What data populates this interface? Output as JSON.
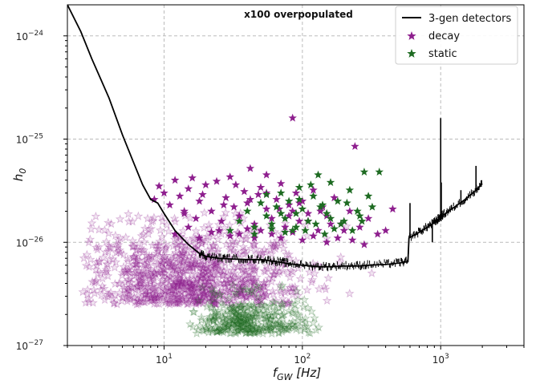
{
  "chart_data": {
    "type": "scatter",
    "title": "x100 overpopulated",
    "xlabel": "f_GW [Hz]",
    "ylabel": "h_0",
    "x_scale": "log",
    "y_scale": "log",
    "xlim": [
      2,
      4000
    ],
    "ylim": [
      1e-27,
      2e-24
    ],
    "x_ticks": [
      {
        "value": 10,
        "base": "10",
        "exp": "1"
      },
      {
        "value": 100,
        "base": "10",
        "exp": "2"
      },
      {
        "value": 1000,
        "base": "10",
        "exp": "3"
      }
    ],
    "y_ticks": [
      {
        "value": 1e-27,
        "base": "10",
        "exp": "−27"
      },
      {
        "value": 1e-26,
        "base": "10",
        "exp": "−26"
      },
      {
        "value": 1e-25,
        "base": "10",
        "exp": "−25"
      },
      {
        "value": 1e-24,
        "base": "10",
        "exp": "−24"
      }
    ],
    "grid": true,
    "legend": {
      "placement": "top-right",
      "entries": [
        {
          "label": "3-gen detectors",
          "marker": "line",
          "color": "#000000"
        },
        {
          "label": "decay",
          "marker": "star",
          "color": "#8e1f8e"
        },
        {
          "label": "static",
          "marker": "star",
          "color": "#1e6b22"
        }
      ]
    },
    "series": [
      {
        "name": "3-gen detectors",
        "kind": "line",
        "color": "#000000",
        "x": [
          2,
          2.5,
          3,
          4,
          5,
          6,
          7,
          8,
          9,
          10,
          12,
          15,
          18,
          20,
          25,
          30,
          40,
          50,
          60,
          70,
          80,
          100,
          130,
          160,
          200,
          250,
          300,
          400,
          500,
          580,
          590,
          700,
          800,
          900,
          950,
          1000,
          1050,
          1200,
          1500,
          1800,
          2000
        ],
        "y": [
          2e-24,
          1.1e-24,
          6e-25,
          2.5e-25,
          1.1e-25,
          6e-26,
          3.6e-26,
          2.6e-26,
          2.4e-26,
          1.9e-26,
          1.3e-26,
          9.5e-27,
          7.8e-27,
          7.3e-27,
          7e-27,
          6.9e-27,
          6.8e-27,
          6.8e-27,
          6.6e-27,
          6.4e-27,
          6.2e-27,
          6e-27,
          5.8e-27,
          5.8e-27,
          5.9e-27,
          5.9e-27,
          6e-27,
          6.1e-27,
          6.3e-27,
          6.5e-27,
          1.1e-26,
          1.25e-26,
          1.4e-26,
          1.55e-26,
          1.65e-26,
          1.75e-26,
          1.85e-26,
          2.1e-26,
          2.6e-26,
          3.2e-26,
          3.7e-26
        ]
      },
      {
        "name": "decay",
        "kind": "scatter",
        "marker": "star",
        "color": "#8e1f8e",
        "x": [
          8.5,
          9.2,
          10,
          11,
          12,
          13,
          14,
          15,
          16,
          17,
          18,
          20,
          22,
          24,
          26,
          28,
          30,
          32,
          35,
          38,
          40,
          42,
          45,
          48,
          50,
          55,
          60,
          65,
          70,
          75,
          80,
          85,
          90,
          95,
          100,
          110,
          120,
          130,
          140,
          150,
          170,
          190,
          220,
          260,
          300,
          350,
          400,
          450,
          12,
          15,
          18,
          22,
          25,
          30,
          35,
          40,
          45,
          50,
          60,
          70,
          85,
          100,
          120,
          150,
          180,
          230,
          280,
          14,
          19,
          27,
          33,
          42,
          55,
          68,
          80,
          95,
          110,
          135,
          160,
          200,
          85,
          55,
          240
        ],
        "y": [
          2.6e-26,
          3.5e-26,
          3e-26,
          2.3e-26,
          4e-26,
          2.8e-26,
          1.9e-26,
          3.3e-26,
          4.2e-26,
          1.7e-26,
          2.5e-26,
          3.6e-26,
          2e-26,
          3.9e-26,
          1.6e-26,
          2.7e-26,
          4.3e-26,
          2.2e-26,
          1.8e-26,
          3.1e-26,
          2.4e-26,
          5.2e-26,
          1.5e-26,
          2.9e-26,
          3.4e-26,
          2.1e-26,
          1.7e-26,
          2.6e-26,
          3.7e-26,
          1.4e-26,
          2.3e-26,
          2e-26,
          3e-26,
          1.6e-26,
          2.5e-26,
          1.9e-26,
          3.2e-26,
          1.3e-26,
          2.2e-26,
          1.8e-26,
          2.7e-26,
          1.5e-26,
          2e-26,
          1.4e-26,
          1.7e-26,
          1.2e-26,
          1.3e-26,
          2.1e-26,
          1.2e-26,
          1.4e-26,
          1.1e-26,
          1.25e-26,
          1.3e-26,
          1.15e-26,
          1.2e-26,
          1.35e-26,
          1.1e-26,
          1.3e-26,
          1.2e-26,
          1.1e-26,
          1.25e-26,
          1.05e-26,
          1.15e-26,
          1e-26,
          1.1e-26,
          1.05e-26,
          9.5e-27,
          2e-26,
          2.9e-26,
          2.3e-26,
          3.6e-26,
          2.6e-26,
          3e-26,
          2.1e-26,
          1.8e-26,
          2.4e-26,
          1.6e-26,
          2e-26,
          1.5e-26,
          1.3e-26,
          1.6e-25,
          4.5e-26,
          8.5e-26
        ]
      },
      {
        "name": "static",
        "kind": "scatter",
        "marker": "star",
        "color": "#1e6b22",
        "x": [
          30,
          35,
          40,
          45,
          50,
          55,
          60,
          65,
          70,
          75,
          80,
          85,
          90,
          95,
          100,
          110,
          120,
          130,
          140,
          150,
          160,
          180,
          200,
          220,
          250,
          280,
          320,
          360,
          45,
          60,
          75,
          90,
          105,
          125,
          145,
          170,
          190,
          230,
          270,
          55,
          70,
          95,
          115,
          135,
          160,
          210,
          260,
          300
        ],
        "y": [
          1.3e-26,
          1.6e-26,
          2e-26,
          1.4e-26,
          2.4e-26,
          1.8e-26,
          1.5e-26,
          2.2e-26,
          3e-26,
          1.7e-26,
          2.5e-26,
          1.3e-26,
          1.9e-26,
          3.4e-26,
          2.1e-26,
          1.6e-26,
          2.8e-26,
          4.5e-26,
          2.3e-26,
          1.9e-26,
          3.8e-26,
          2.5e-26,
          1.6e-26,
          3.2e-26,
          2e-26,
          4.8e-26,
          2.2e-26,
          4.8e-26,
          1.2e-26,
          1.35e-26,
          1.25e-26,
          1.4e-26,
          1.3e-26,
          1.5e-26,
          1.2e-26,
          1.35e-26,
          1.5e-26,
          1.3e-26,
          1.6e-26,
          2.9e-26,
          1.9e-26,
          2.6e-26,
          3.6e-26,
          2.2e-26,
          1.7e-26,
          2.4e-26,
          1.8e-26,
          2.8e-26
        ]
      },
      {
        "name": "decay",
        "kind": "scatter-cloud",
        "marker": "star",
        "color": "#8e1f8e",
        "alpha": 0.3,
        "x_range": [
          2.5,
          500
        ],
        "y_range": [
          1e-27,
          2e-26
        ],
        "peak_x": 15,
        "peak_y": 2.5e-27
      },
      {
        "name": "static",
        "kind": "scatter-cloud",
        "marker": "star",
        "color": "#1e6b22",
        "alpha": 0.3,
        "x_range": [
          15,
          150
        ],
        "y_range": [
          1e-27,
          4e-27
        ],
        "peak_x": 40,
        "peak_y": 1.3e-27
      }
    ],
    "detector_peaks": [
      {
        "x": 600,
        "y": 2.4e-26
      },
      {
        "x": 870,
        "y": 1e-26
      },
      {
        "x": 1000,
        "y": 1.6e-25
      },
      {
        "x": 1010,
        "y": 3.8e-26
      },
      {
        "x": 1400,
        "y": 3.2e-26
      },
      {
        "x": 1800,
        "y": 5.5e-26
      }
    ]
  }
}
